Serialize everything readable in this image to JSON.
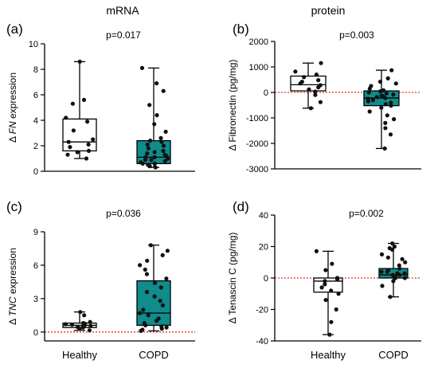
{
  "column_titles": [
    "mRNA",
    "protein"
  ],
  "colors": {
    "healthy_fill": "#ffffff",
    "copd_fill": "#0f8c8c",
    "zero_line": "#e8312a",
    "ink": "#000000",
    "point": "#111111"
  },
  "chart_data": [
    {
      "type": "box",
      "panel_label": "(a)",
      "p_value": "p=0.017",
      "ylabel_prefix": "Δ ",
      "ylabel_italic": "FN",
      "ylabel_suffix": " expression",
      "ylim": [
        0,
        10
      ],
      "yticks": [
        "0",
        "2",
        "4",
        "6",
        "8",
        "10"
      ],
      "ytick_values": [
        0,
        2,
        4,
        6,
        8,
        10
      ],
      "zero_line": false,
      "x_axis_at": 0,
      "show_categories": false,
      "categories": [
        "Healthy",
        "COPD"
      ],
      "series": [
        {
          "name": "Healthy",
          "min": 1.0,
          "q1": 1.6,
          "median": 2.3,
          "q3": 4.1,
          "max": 8.6,
          "points": [
            1.0,
            1.3,
            1.5,
            1.6,
            1.9,
            2.1,
            2.3,
            2.5,
            3.2,
            3.9,
            4.2,
            5.3,
            5.6,
            8.6
          ]
        },
        {
          "name": "COPD",
          "min": 0.3,
          "q1": 0.6,
          "median": 1.1,
          "q3": 2.4,
          "max": 8.1,
          "points": [
            0.3,
            0.4,
            0.5,
            0.6,
            0.6,
            0.7,
            0.8,
            0.9,
            0.9,
            1.0,
            1.1,
            1.1,
            1.2,
            1.3,
            1.4,
            1.5,
            1.6,
            1.8,
            2.0,
            2.1,
            2.3,
            2.4,
            2.6,
            3.1,
            3.7,
            4.4,
            5.2,
            6.3,
            6.9,
            8.1
          ]
        }
      ]
    },
    {
      "type": "box",
      "panel_label": "(b)",
      "p_value": "p=0.003",
      "ylabel_prefix": "Δ Fibronectin (pg/mg)",
      "ylabel_italic": "",
      "ylabel_suffix": "",
      "ylim": [
        -3000,
        2000
      ],
      "yticks": [
        "-3000",
        "-2000",
        "-1000",
        "0",
        "1000",
        "2000"
      ],
      "ytick_values": [
        -3000,
        -2000,
        -1000,
        0,
        1000,
        2000
      ],
      "zero_line": true,
      "x_axis_at": -3000,
      "show_categories": false,
      "categories": [
        "Healthy",
        "COPD"
      ],
      "series": [
        {
          "name": "Healthy",
          "min": -620,
          "q1": 60,
          "median": 300,
          "q3": 640,
          "max": 1150,
          "points": [
            -620,
            -380,
            -100,
            30,
            120,
            200,
            280,
            350,
            420,
            480,
            600,
            700,
            820,
            1150
          ]
        },
        {
          "name": "COPD",
          "min": -2200,
          "q1": -520,
          "median": -220,
          "q3": 60,
          "max": 870,
          "points": [
            -2200,
            -1650,
            -1400,
            -1200,
            -1050,
            -900,
            -750,
            -600,
            -520,
            -460,
            -400,
            -350,
            -300,
            -250,
            -220,
            -180,
            -150,
            -120,
            -80,
            -40,
            0,
            40,
            80,
            150,
            250,
            350,
            420,
            550,
            870
          ]
        }
      ]
    },
    {
      "type": "box",
      "panel_label": "(c)",
      "p_value": "p=0.036",
      "ylabel_prefix": "Δ ",
      "ylabel_italic": "TNC",
      "ylabel_suffix": "  expression",
      "ylim": [
        -0.8,
        9
      ],
      "yticks": [
        "0",
        "3",
        "6",
        "9"
      ],
      "ytick_values": [
        0,
        3,
        6,
        9
      ],
      "zero_line": true,
      "x_axis_at": -0.8,
      "show_categories": true,
      "categories": [
        "Healthy",
        "COPD"
      ],
      "series": [
        {
          "name": "Healthy",
          "min": 0.15,
          "q1": 0.4,
          "median": 0.6,
          "q3": 0.8,
          "max": 1.8,
          "points": [
            0.15,
            0.3,
            0.4,
            0.45,
            0.5,
            0.55,
            0.6,
            0.65,
            0.7,
            0.75,
            0.8,
            0.9,
            1.5,
            1.8
          ]
        },
        {
          "name": "COPD",
          "min": 0.1,
          "q1": 0.6,
          "median": 1.7,
          "q3": 4.6,
          "max": 7.8,
          "points": [
            0.1,
            0.2,
            0.3,
            0.4,
            0.5,
            0.6,
            0.8,
            1.0,
            1.2,
            1.5,
            1.7,
            2.0,
            2.4,
            2.8,
            3.2,
            3.6,
            4.0,
            4.4,
            4.8,
            5.2,
            5.6,
            6.0,
            6.4,
            6.9,
            7.3,
            7.8
          ]
        }
      ]
    },
    {
      "type": "box",
      "panel_label": "(d)",
      "p_value": "p=0.002",
      "ylabel_prefix": "Δ Tenascin C (pg/mg)",
      "ylabel_italic": "",
      "ylabel_suffix": "",
      "ylim": [
        -40,
        40
      ],
      "yticks": [
        "-40",
        "-20",
        "0",
        "20",
        "40"
      ],
      "ytick_values": [
        -40,
        -20,
        0,
        20,
        40
      ],
      "zero_line": true,
      "x_axis_at": -40,
      "show_categories": true,
      "categories": [
        "Healthy",
        "COPD"
      ],
      "series": [
        {
          "name": "Healthy",
          "min": -36,
          "q1": -9,
          "median": -2,
          "q3": 0,
          "max": 17,
          "points": [
            -36,
            -28,
            -20,
            -14,
            -10,
            -8,
            -6,
            -4,
            -2,
            -1,
            0,
            5,
            9,
            17
          ]
        },
        {
          "name": "COPD",
          "min": -12,
          "q1": 0,
          "median": 2,
          "q3": 6,
          "max": 22,
          "points": [
            -12,
            -5,
            -2,
            0,
            0,
            1,
            1,
            2,
            2,
            3,
            3,
            4,
            4,
            5,
            6,
            8,
            10,
            12,
            13,
            15,
            18,
            19,
            20,
            22
          ]
        }
      ]
    }
  ]
}
